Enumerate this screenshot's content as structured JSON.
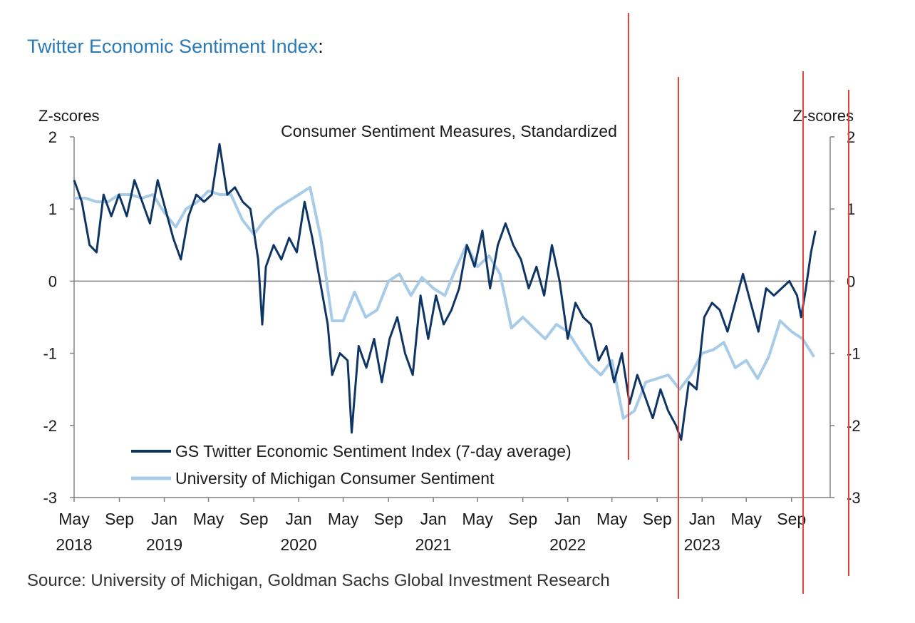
{
  "heading": {
    "title": "Twitter Economic Sentiment Index",
    "suffix": ":"
  },
  "source": "Source: University of Michigan, Goldman Sachs Global Investment Research",
  "colors": {
    "twitter_series": "#0f3564",
    "michigan_series": "#a8cbe8",
    "annotation_lines": "#e8423a",
    "axis": "#808080",
    "heading_link": "#2a7ab8"
  },
  "chart_data": {
    "type": "line",
    "title": "Consumer Sentiment Measures, Standardized",
    "ylabel_left": "Z-scores",
    "ylabel_right": "Z-scores",
    "ylim": [
      -3,
      2
    ],
    "yticks": [
      "-3",
      "-2",
      "-1",
      "0",
      "1",
      "2"
    ],
    "xlim": [
      "2018-05-01",
      "2023-12-15"
    ],
    "xticks": [
      {
        "date": "2018-05-01",
        "label": "May",
        "year": "2018"
      },
      {
        "date": "2018-09-01",
        "label": "Sep",
        "year": ""
      },
      {
        "date": "2019-01-01",
        "label": "Jan",
        "year": "2019"
      },
      {
        "date": "2019-05-01",
        "label": "May",
        "year": ""
      },
      {
        "date": "2019-09-01",
        "label": "Sep",
        "year": ""
      },
      {
        "date": "2020-01-01",
        "label": "Jan",
        "year": "2020"
      },
      {
        "date": "2020-05-01",
        "label": "May",
        "year": ""
      },
      {
        "date": "2020-09-01",
        "label": "Sep",
        "year": ""
      },
      {
        "date": "2021-01-01",
        "label": "Jan",
        "year": "2021"
      },
      {
        "date": "2021-05-01",
        "label": "May",
        "year": ""
      },
      {
        "date": "2021-09-01",
        "label": "Sep",
        "year": ""
      },
      {
        "date": "2022-01-01",
        "label": "Jan",
        "year": "2022"
      },
      {
        "date": "2022-05-01",
        "label": "May",
        "year": ""
      },
      {
        "date": "2022-09-01",
        "label": "Sep",
        "year": ""
      },
      {
        "date": "2023-01-01",
        "label": "Jan",
        "year": "2023"
      },
      {
        "date": "2023-05-01",
        "label": "May",
        "year": ""
      },
      {
        "date": "2023-09-01",
        "label": "Sep",
        "year": ""
      }
    ],
    "zero_line": true,
    "legend_position": "bottom-left",
    "series": [
      {
        "name": "GS Twitter Economic Sentiment Index (7-day average)",
        "points": [
          [
            "2018-05-01",
            1.4
          ],
          [
            "2018-05-22",
            1.1
          ],
          [
            "2018-06-12",
            0.5
          ],
          [
            "2018-07-01",
            0.4
          ],
          [
            "2018-07-20",
            1.2
          ],
          [
            "2018-08-10",
            0.9
          ],
          [
            "2018-08-31",
            1.2
          ],
          [
            "2018-09-21",
            0.9
          ],
          [
            "2018-10-12",
            1.4
          ],
          [
            "2018-11-02",
            1.1
          ],
          [
            "2018-11-23",
            0.8
          ],
          [
            "2018-12-14",
            1.4
          ],
          [
            "2019-01-04",
            1.0
          ],
          [
            "2019-01-25",
            0.6
          ],
          [
            "2019-02-15",
            0.3
          ],
          [
            "2019-03-08",
            0.9
          ],
          [
            "2019-03-29",
            1.2
          ],
          [
            "2019-04-19",
            1.1
          ],
          [
            "2019-05-10",
            1.2
          ],
          [
            "2019-05-31",
            1.9
          ],
          [
            "2019-06-21",
            1.2
          ],
          [
            "2019-07-12",
            1.3
          ],
          [
            "2019-08-02",
            1.1
          ],
          [
            "2019-08-23",
            1.0
          ],
          [
            "2019-09-13",
            0.3
          ],
          [
            "2019-09-24",
            -0.6
          ],
          [
            "2019-10-04",
            0.2
          ],
          [
            "2019-10-25",
            0.5
          ],
          [
            "2019-11-15",
            0.3
          ],
          [
            "2019-12-06",
            0.6
          ],
          [
            "2019-12-27",
            0.4
          ],
          [
            "2020-01-17",
            1.1
          ],
          [
            "2020-02-07",
            0.6
          ],
          [
            "2020-02-28",
            0.0
          ],
          [
            "2020-03-20",
            -0.6
          ],
          [
            "2020-04-01",
            -1.3
          ],
          [
            "2020-04-22",
            -1.0
          ],
          [
            "2020-05-13",
            -1.1
          ],
          [
            "2020-05-24",
            -2.1
          ],
          [
            "2020-06-12",
            -0.9
          ],
          [
            "2020-07-03",
            -1.2
          ],
          [
            "2020-07-24",
            -0.8
          ],
          [
            "2020-08-14",
            -1.4
          ],
          [
            "2020-09-04",
            -0.8
          ],
          [
            "2020-09-25",
            -0.5
          ],
          [
            "2020-10-16",
            -1.0
          ],
          [
            "2020-11-06",
            -1.3
          ],
          [
            "2020-11-27",
            -0.2
          ],
          [
            "2020-12-18",
            -0.8
          ],
          [
            "2021-01-08",
            -0.2
          ],
          [
            "2021-01-29",
            -0.6
          ],
          [
            "2021-02-19",
            -0.4
          ],
          [
            "2021-03-12",
            -0.1
          ],
          [
            "2021-04-02",
            0.5
          ],
          [
            "2021-04-23",
            0.2
          ],
          [
            "2021-05-14",
            0.7
          ],
          [
            "2021-06-04",
            -0.1
          ],
          [
            "2021-06-25",
            0.5
          ],
          [
            "2021-07-16",
            0.8
          ],
          [
            "2021-08-06",
            0.5
          ],
          [
            "2021-08-27",
            0.3
          ],
          [
            "2021-09-17",
            -0.1
          ],
          [
            "2021-10-08",
            0.2
          ],
          [
            "2021-10-29",
            -0.2
          ],
          [
            "2021-11-19",
            0.5
          ],
          [
            "2021-12-10",
            0.0
          ],
          [
            "2022-01-01",
            -0.8
          ],
          [
            "2022-01-22",
            -0.3
          ],
          [
            "2022-02-12",
            -0.5
          ],
          [
            "2022-03-05",
            -0.6
          ],
          [
            "2022-03-26",
            -1.1
          ],
          [
            "2022-04-16",
            -0.9
          ],
          [
            "2022-05-07",
            -1.4
          ],
          [
            "2022-05-28",
            -1.0
          ],
          [
            "2022-06-18",
            -1.7
          ],
          [
            "2022-07-09",
            -1.3
          ],
          [
            "2022-07-30",
            -1.6
          ],
          [
            "2022-08-20",
            -1.9
          ],
          [
            "2022-09-10",
            -1.5
          ],
          [
            "2022-10-01",
            -1.8
          ],
          [
            "2022-10-22",
            -2.0
          ],
          [
            "2022-11-05",
            -2.2
          ],
          [
            "2022-11-26",
            -1.4
          ],
          [
            "2022-12-17",
            -1.5
          ],
          [
            "2023-01-07",
            -0.5
          ],
          [
            "2023-01-28",
            -0.3
          ],
          [
            "2023-02-18",
            -0.4
          ],
          [
            "2023-03-11",
            -0.7
          ],
          [
            "2023-04-01",
            -0.3
          ],
          [
            "2023-04-22",
            0.1
          ],
          [
            "2023-05-13",
            -0.3
          ],
          [
            "2023-06-03",
            -0.7
          ],
          [
            "2023-06-24",
            -0.1
          ],
          [
            "2023-07-15",
            -0.2
          ],
          [
            "2023-08-05",
            -0.1
          ],
          [
            "2023-08-26",
            0.0
          ],
          [
            "2023-09-16",
            -0.2
          ],
          [
            "2023-09-27",
            -0.5
          ],
          [
            "2023-10-10",
            -0.1
          ],
          [
            "2023-10-24",
            0.4
          ],
          [
            "2023-11-05",
            0.7
          ]
        ]
      },
      {
        "name": "University of Michigan Consumer Sentiment",
        "points": [
          [
            "2018-05-01",
            1.15
          ],
          [
            "2018-06-01",
            1.15
          ],
          [
            "2018-07-01",
            1.1
          ],
          [
            "2018-08-01",
            1.1
          ],
          [
            "2018-09-01",
            1.2
          ],
          [
            "2018-10-01",
            1.2
          ],
          [
            "2018-11-01",
            1.15
          ],
          [
            "2018-12-01",
            1.2
          ],
          [
            "2019-01-01",
            0.95
          ],
          [
            "2019-02-01",
            0.75
          ],
          [
            "2019-03-01",
            1.0
          ],
          [
            "2019-04-01",
            1.1
          ],
          [
            "2019-05-01",
            1.25
          ],
          [
            "2019-06-01",
            1.2
          ],
          [
            "2019-07-01",
            1.2
          ],
          [
            "2019-08-01",
            0.85
          ],
          [
            "2019-09-01",
            0.65
          ],
          [
            "2019-10-01",
            0.85
          ],
          [
            "2019-11-01",
            1.0
          ],
          [
            "2019-12-01",
            1.1
          ],
          [
            "2020-01-01",
            1.2
          ],
          [
            "2020-02-01",
            1.3
          ],
          [
            "2020-03-01",
            0.6
          ],
          [
            "2020-04-01",
            -0.55
          ],
          [
            "2020-05-01",
            -0.55
          ],
          [
            "2020-06-01",
            -0.15
          ],
          [
            "2020-07-01",
            -0.5
          ],
          [
            "2020-08-01",
            -0.4
          ],
          [
            "2020-09-01",
            0.0
          ],
          [
            "2020-10-01",
            0.1
          ],
          [
            "2020-11-01",
            -0.2
          ],
          [
            "2020-12-01",
            0.05
          ],
          [
            "2021-01-01",
            -0.1
          ],
          [
            "2021-02-01",
            -0.2
          ],
          [
            "2021-03-01",
            0.15
          ],
          [
            "2021-04-01",
            0.5
          ],
          [
            "2021-05-01",
            0.2
          ],
          [
            "2021-06-01",
            0.35
          ],
          [
            "2021-07-01",
            0.1
          ],
          [
            "2021-08-01",
            -0.65
          ],
          [
            "2021-09-01",
            -0.5
          ],
          [
            "2021-10-01",
            -0.65
          ],
          [
            "2021-11-01",
            -0.8
          ],
          [
            "2021-12-01",
            -0.6
          ],
          [
            "2022-01-01",
            -0.7
          ],
          [
            "2022-02-01",
            -0.95
          ],
          [
            "2022-03-01",
            -1.15
          ],
          [
            "2022-04-01",
            -1.3
          ],
          [
            "2022-05-01",
            -1.1
          ],
          [
            "2022-06-01",
            -1.9
          ],
          [
            "2022-07-01",
            -1.8
          ],
          [
            "2022-08-01",
            -1.4
          ],
          [
            "2022-09-01",
            -1.35
          ],
          [
            "2022-10-01",
            -1.3
          ],
          [
            "2022-11-01",
            -1.5
          ],
          [
            "2022-12-01",
            -1.3
          ],
          [
            "2023-01-01",
            -1.0
          ],
          [
            "2023-02-01",
            -0.95
          ],
          [
            "2023-03-01",
            -0.85
          ],
          [
            "2023-04-01",
            -1.2
          ],
          [
            "2023-05-01",
            -1.1
          ],
          [
            "2023-06-01",
            -1.35
          ],
          [
            "2023-07-01",
            -1.05
          ],
          [
            "2023-08-01",
            -0.55
          ],
          [
            "2023-09-01",
            -0.7
          ],
          [
            "2023-10-01",
            -0.8
          ],
          [
            "2023-11-01",
            -1.05
          ]
        ]
      }
    ]
  }
}
